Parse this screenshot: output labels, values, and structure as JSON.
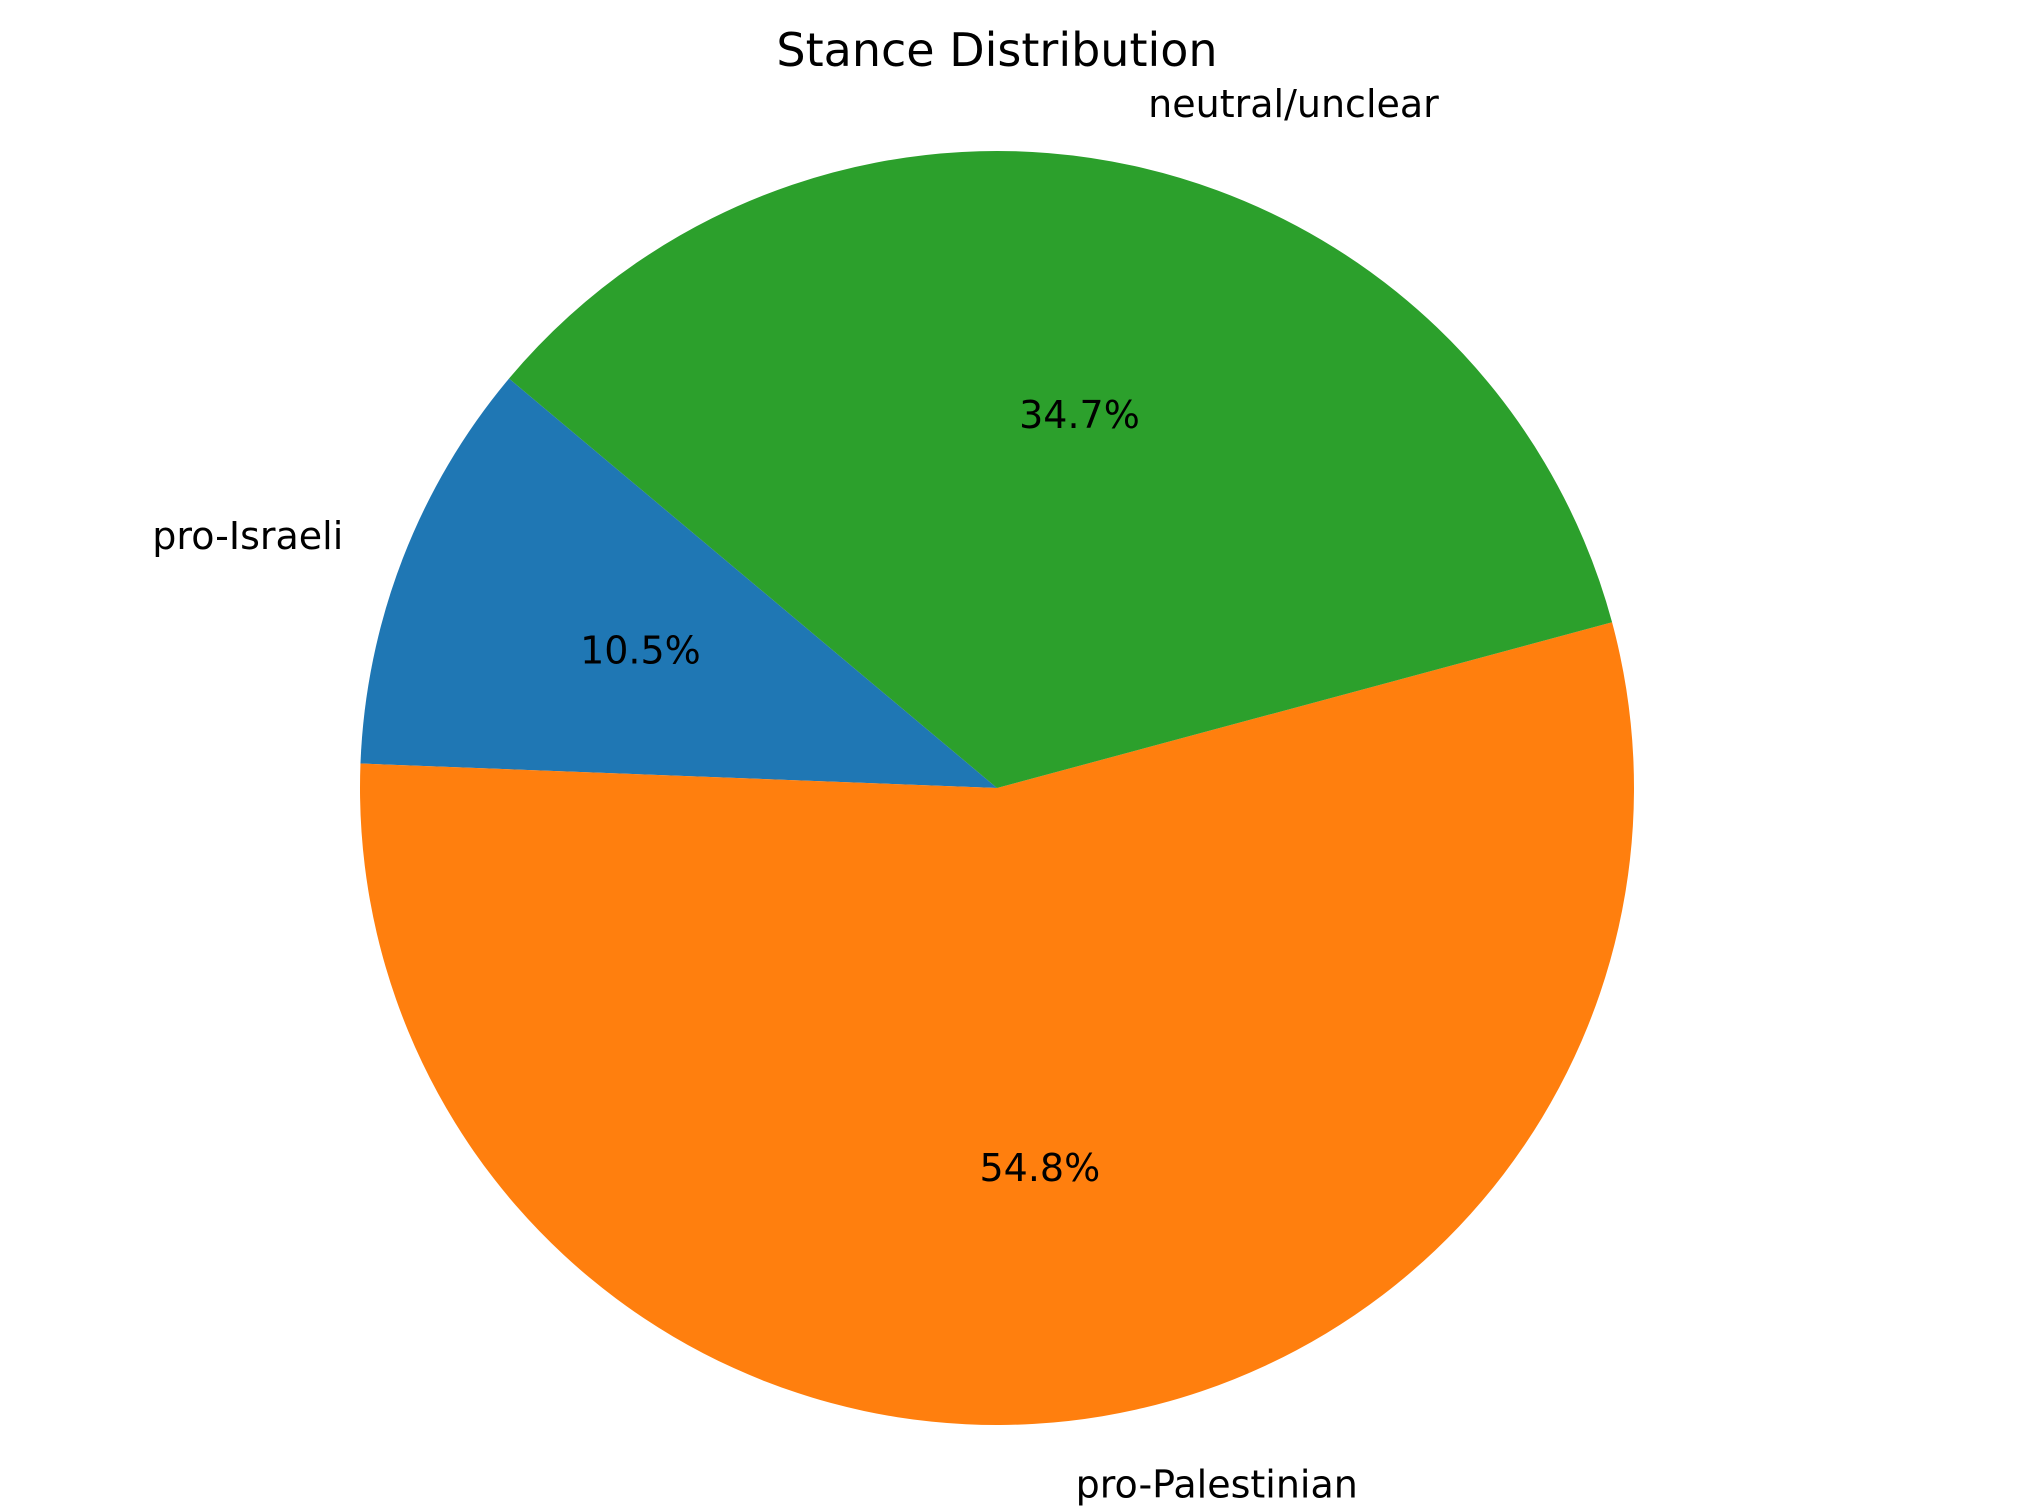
{
  "chart_data": {
    "type": "pie",
    "title": "Stance Distribution",
    "slices": [
      {
        "label": "pro-Israeli",
        "value": 10.5,
        "pct_label": "10.5%",
        "color": "#1f77b4"
      },
      {
        "label": "pro-Palestinian",
        "value": 54.8,
        "pct_label": "54.8%",
        "color": "#ff7f0e"
      },
      {
        "label": "neutral/unclear",
        "value": 34.7,
        "pct_label": "34.7%",
        "color": "#2ca02c"
      }
    ],
    "start_angle_deg": 140,
    "direction": "counterclockwise",
    "legend": "none"
  }
}
